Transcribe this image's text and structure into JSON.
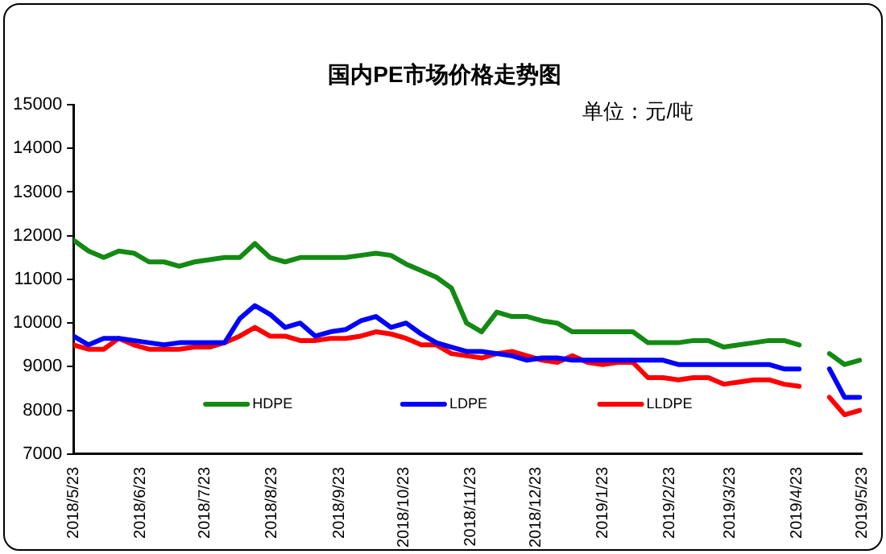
{
  "chart_data": {
    "type": "line",
    "title": "国内PE市场价格走势图",
    "subtitle": "单位：元/吨",
    "x": [
      "2018-05-23",
      "2018-05-30",
      "2018-06-06",
      "2018-06-13",
      "2018-06-20",
      "2018-06-27",
      "2018-07-04",
      "2018-07-11",
      "2018-07-18",
      "2018-07-25",
      "2018-08-01",
      "2018-08-08",
      "2018-08-15",
      "2018-08-22",
      "2018-08-29",
      "2018-09-05",
      "2018-09-12",
      "2018-09-19",
      "2018-09-26",
      "2018-10-03",
      "2018-10-10",
      "2018-10-17",
      "2018-10-24",
      "2018-10-31",
      "2018-11-07",
      "2018-11-14",
      "2018-11-21",
      "2018-11-28",
      "2018-12-05",
      "2018-12-12",
      "2018-12-19",
      "2018-12-26",
      "2019-01-02",
      "2019-01-09",
      "2019-01-16",
      "2019-01-23",
      "2019-01-30",
      "2019-02-06",
      "2019-02-13",
      "2019-02-20",
      "2019-02-27",
      "2019-03-06",
      "2019-03-13",
      "2019-03-20",
      "2019-03-27",
      "2019-04-03",
      "2019-04-10",
      "2019-04-17",
      "2019-04-24",
      "2019-05-01",
      "2019-05-08",
      "2019-05-15",
      "2019-05-22"
    ],
    "series": [
      {
        "name": "HDPE",
        "color": "#138a13",
        "values": [
          11900,
          11650,
          11500,
          11650,
          11600,
          11400,
          11400,
          11300,
          11400,
          11450,
          11500,
          11500,
          11820,
          11500,
          11400,
          11500,
          11500,
          11500,
          11500,
          11550,
          11600,
          11550,
          11350,
          11200,
          11050,
          10800,
          10000,
          9800,
          10250,
          10150,
          10150,
          10050,
          10000,
          9800,
          9800,
          9800,
          9800,
          9800,
          9550,
          9550,
          9550,
          9600,
          9600,
          9450,
          9500,
          9550,
          9600,
          9600,
          9500,
          null,
          9300,
          9050,
          9150
        ]
      },
      {
        "name": "LDPE",
        "color": "#0000ff",
        "values": [
          9700,
          9500,
          9650,
          9650,
          9600,
          9550,
          9500,
          9550,
          9550,
          9550,
          9550,
          10100,
          10400,
          10200,
          9900,
          10000,
          9700,
          9800,
          9850,
          10050,
          10150,
          9900,
          10000,
          9750,
          9550,
          9450,
          9350,
          9350,
          9300,
          9250,
          9150,
          9200,
          9200,
          9150,
          9150,
          9150,
          9150,
          9150,
          9150,
          9150,
          9050,
          9050,
          9050,
          9050,
          9050,
          9050,
          9050,
          8950,
          8950,
          null,
          8950,
          8300,
          8300
        ]
      },
      {
        "name": "LLDPE",
        "color": "#ff0000",
        "values": [
          9500,
          9400,
          9400,
          9650,
          9500,
          9400,
          9400,
          9400,
          9450,
          9450,
          9550,
          9700,
          9900,
          9700,
          9700,
          9600,
          9600,
          9650,
          9650,
          9700,
          9800,
          9750,
          9650,
          9500,
          9500,
          9300,
          9250,
          9200,
          9300,
          9350,
          9250,
          9150,
          9100,
          9250,
          9100,
          9050,
          9100,
          9100,
          8750,
          8750,
          8700,
          8750,
          8750,
          8600,
          8650,
          8700,
          8700,
          8600,
          8550,
          null,
          8300,
          7900,
          8000
        ]
      }
    ],
    "xlim": [
      "2018-05-23",
      "2019-05-23"
    ],
    "xticks": [
      {
        "value": "2018-05-23",
        "label": "2018/5/23"
      },
      {
        "value": "2018-06-23",
        "label": "2018/6/23"
      },
      {
        "value": "2018-07-23",
        "label": "2018/7/23"
      },
      {
        "value": "2018-08-23",
        "label": "2018/8/23"
      },
      {
        "value": "2018-09-23",
        "label": "2018/9/23"
      },
      {
        "value": "2018-10-23",
        "label": "2018/10/23"
      },
      {
        "value": "2018-11-23",
        "label": "2018/11/23"
      },
      {
        "value": "2018-12-23",
        "label": "2018/12/23"
      },
      {
        "value": "2019-01-23",
        "label": "2019/1/23"
      },
      {
        "value": "2019-02-23",
        "label": "2019/2/23"
      },
      {
        "value": "2019-03-23",
        "label": "2019/3/23"
      },
      {
        "value": "2019-04-23",
        "label": "2019/4/23"
      },
      {
        "value": "2019-05-23",
        "label": "2019/5/23"
      }
    ],
    "ylim": [
      7000,
      15000
    ],
    "yticks": [
      7000,
      8000,
      9000,
      10000,
      11000,
      12000,
      13000,
      14000,
      15000
    ],
    "grid": false,
    "legend": "bottom",
    "marker": "none",
    "line_style": "solid"
  }
}
